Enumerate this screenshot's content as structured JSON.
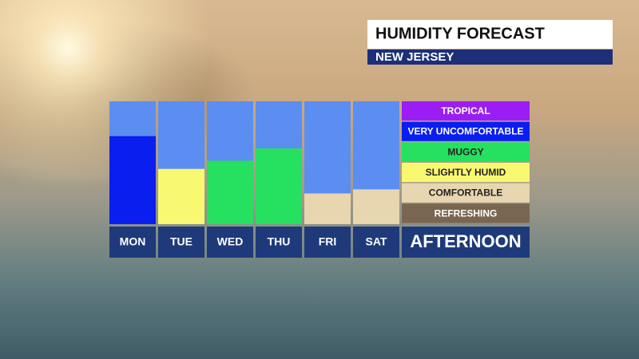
{
  "chart_data": {
    "type": "bar",
    "title": "HUMIDITY FORECAST",
    "subtitle": "NEW JERSEY",
    "x_label": "AFTERNOON",
    "categories": [
      "MON",
      "TUE",
      "WED",
      "THU",
      "FRI",
      "SAT"
    ],
    "values": [
      4.3,
      2.7,
      3.1,
      3.7,
      1.5,
      1.7
    ],
    "colors": [
      "#0a1ef0",
      "#f9f871",
      "#26e060",
      "#26e060",
      "#e8d6b0",
      "#e8d6b0"
    ],
    "background_color": "#5b8ef0",
    "ylim": [
      0,
      6
    ],
    "levels": [
      {
        "name": "TROPICAL",
        "color": "#9b1df5"
      },
      {
        "name": "VERY UNCOMFORTABLE",
        "color": "#0a1ef0"
      },
      {
        "name": "MUGGY",
        "color": "#26e060"
      },
      {
        "name": "SLIGHTLY HUMID",
        "color": "#f9f871"
      },
      {
        "name": "COMFORTABLE",
        "color": "#e8d6b0"
      },
      {
        "name": "REFRESHING",
        "color": "#7a6650"
      }
    ]
  }
}
